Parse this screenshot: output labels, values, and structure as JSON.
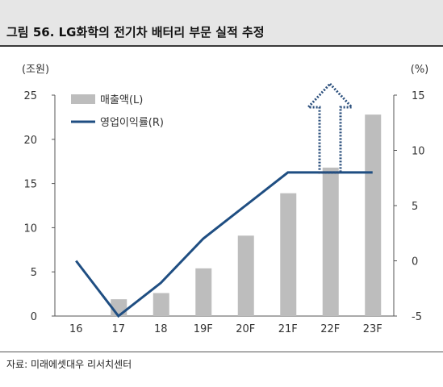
{
  "header": {
    "title": "그림 56. LG화학의 전기차 배터리 부문 실적 추정"
  },
  "footer": {
    "source": "자료: 미래에셋대우 리서치센터"
  },
  "chart_data": {
    "type": "bar",
    "categories": [
      "16",
      "17",
      "18",
      "19F",
      "20F",
      "21F",
      "22F",
      "23F"
    ],
    "series": [
      {
        "name": "매출액(L)",
        "type": "bar",
        "axis": "left",
        "values": [
          0,
          1.9,
          2.6,
          5.4,
          9.1,
          13.9,
          16.8,
          22.8
        ],
        "color": "#bdbdbd"
      },
      {
        "name": "영업이익률(R)",
        "type": "line",
        "axis": "right",
        "values": [
          0,
          -5,
          -2,
          2,
          5,
          8,
          8,
          8
        ],
        "color": "#1f4e82"
      }
    ],
    "y_left": {
      "unit": "(조원)",
      "min": 0,
      "max": 25,
      "ticks": [
        0,
        5,
        10,
        15,
        20,
        25
      ]
    },
    "y_right": {
      "unit": "(%)",
      "min": -5,
      "max": 15,
      "ticks": [
        -5,
        0,
        5,
        10,
        15
      ]
    },
    "legend_position": "top-left",
    "annotation": "dotted-up-arrow",
    "arrow_color": "#2b4f7c",
    "grid": false
  }
}
